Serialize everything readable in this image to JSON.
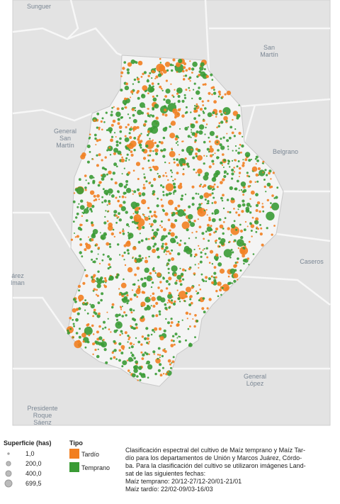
{
  "map": {
    "place_labels": [
      {
        "lines": [
          "Sunguer"
        ]
      },
      {
        "lines": [
          "San",
          "Martín"
        ]
      },
      {
        "lines": [
          "General",
          "San",
          "Martín"
        ]
      },
      {
        "lines": [
          "Belgrano"
        ]
      },
      {
        "lines": [
          "Caseros"
        ]
      },
      {
        "lines": [
          "árez",
          "lman"
        ]
      },
      {
        "lines": [
          "General",
          "López"
        ]
      },
      {
        "lines": [
          "Presidente",
          "Roque",
          "Sáenz"
        ]
      }
    ]
  },
  "legend": {
    "size_title": "Superficie (has)",
    "sizes": [
      {
        "value": 1.0,
        "label": "1,0"
      },
      {
        "value": 200.0,
        "label": "200,0"
      },
      {
        "value": 400.0,
        "label": "400,0"
      },
      {
        "value": 699.5,
        "label": "699,5"
      }
    ],
    "type_title": "Tipo",
    "types": [
      {
        "label": "Tardío",
        "color": "#f27f21"
      },
      {
        "label": "Temprano",
        "color": "#3a9b35"
      }
    ]
  },
  "description": {
    "lines": [
      "Clasificación espectral del cultivo de Maíz temprano y Maíz Tar-",
      "dío para los departamentos de Unión y Marcos Juárez, Córdo-",
      "ba. Para la clasificación del cultivo se utilizaron imágenes Land-",
      "sat de las siguientes fechas:",
      "Maíz temprano: 20/12-27/12-20/01-21/01",
      "Maíz tardío: 22/02-09/03-16/03"
    ]
  }
}
